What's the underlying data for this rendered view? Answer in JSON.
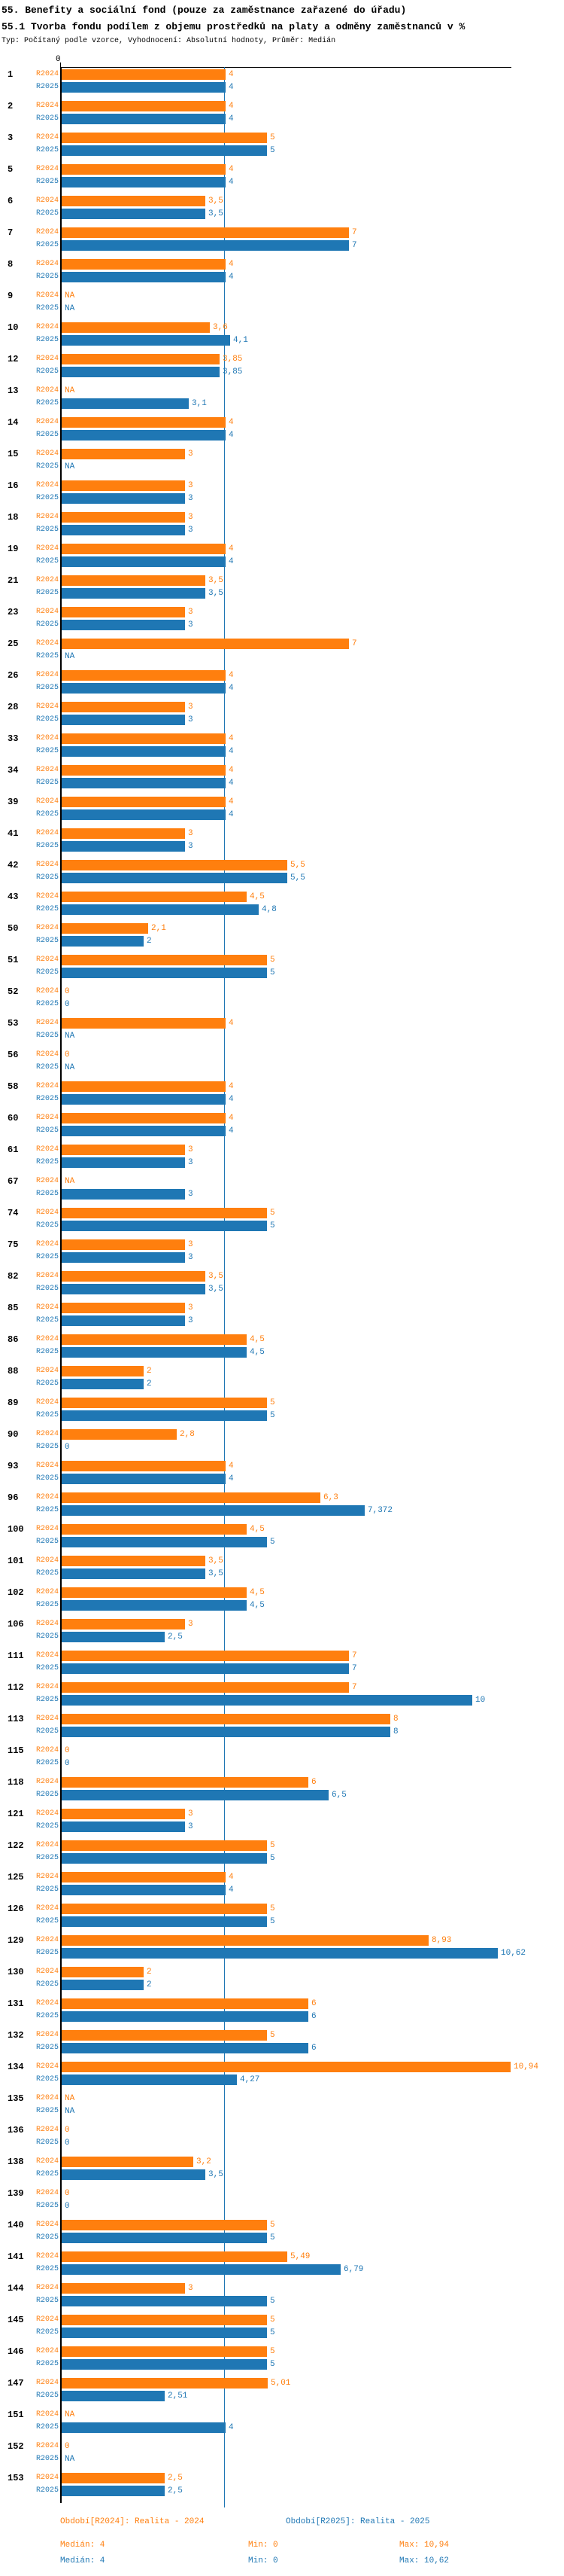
{
  "header": {
    "title_line1": "55. Benefity a sociální fond (pouze za zaměstnance zařazené do úřadu)",
    "title_line2": "55.1 Tvorba fondu podílem z objemu prostředků na platy a odměny zaměstnanců v %",
    "meta": "Typ: Počítaný podle vzorce, Vyhodnocení: Absolutní hodnoty, Průměr: Medián"
  },
  "axis": {
    "zero_label": "0"
  },
  "colors": {
    "r2024": "#ff7f0e",
    "r2025": "#1f77b4",
    "median_line": "#1f77b4",
    "axis": "#000000"
  },
  "series_labels": {
    "r2024": "R2024",
    "r2025": "R2025"
  },
  "na_label": "NA",
  "chart_data": {
    "type": "bar",
    "orientation": "horizontal",
    "series": [
      "R2024",
      "R2025"
    ],
    "decimal_separator": ",",
    "median_line_value": 4,
    "xlim": [
      0,
      11
    ],
    "grid": false,
    "legend_position": "bottom",
    "rows": [
      {
        "id": "1",
        "r2024": 4,
        "r2025": 4
      },
      {
        "id": "2",
        "r2024": 4,
        "r2025": 4
      },
      {
        "id": "3",
        "r2024": 5,
        "r2025": 5
      },
      {
        "id": "5",
        "r2024": 4,
        "r2025": 4
      },
      {
        "id": "6",
        "r2024": 3.5,
        "r2025": 3.5
      },
      {
        "id": "7",
        "r2024": 7,
        "r2025": 7
      },
      {
        "id": "8",
        "r2024": 4,
        "r2025": 4
      },
      {
        "id": "9",
        "r2024": null,
        "r2025": null
      },
      {
        "id": "10",
        "r2024": 3.6,
        "r2025": 4.1
      },
      {
        "id": "12",
        "r2024": 3.85,
        "r2025": 3.85
      },
      {
        "id": "13",
        "r2024": null,
        "r2025": 3.1
      },
      {
        "id": "14",
        "r2024": 4,
        "r2025": 4
      },
      {
        "id": "15",
        "r2024": 3,
        "r2025": null
      },
      {
        "id": "16",
        "r2024": 3,
        "r2025": 3
      },
      {
        "id": "18",
        "r2024": 3,
        "r2025": 3
      },
      {
        "id": "19",
        "r2024": 4,
        "r2025": 4
      },
      {
        "id": "21",
        "r2024": 3.5,
        "r2025": 3.5
      },
      {
        "id": "23",
        "r2024": 3,
        "r2025": 3
      },
      {
        "id": "25",
        "r2024": 7,
        "r2025": null
      },
      {
        "id": "26",
        "r2024": 4,
        "r2025": 4
      },
      {
        "id": "28",
        "r2024": 3,
        "r2025": 3
      },
      {
        "id": "33",
        "r2024": 4,
        "r2025": 4
      },
      {
        "id": "34",
        "r2024": 4,
        "r2025": 4
      },
      {
        "id": "39",
        "r2024": 4,
        "r2025": 4
      },
      {
        "id": "41",
        "r2024": 3,
        "r2025": 3
      },
      {
        "id": "42",
        "r2024": 5.5,
        "r2025": 5.5
      },
      {
        "id": "43",
        "r2024": 4.5,
        "r2025": 4.8
      },
      {
        "id": "50",
        "r2024": 2.1,
        "r2025": 2
      },
      {
        "id": "51",
        "r2024": 5,
        "r2025": 5
      },
      {
        "id": "52",
        "r2024": 0,
        "r2025": 0
      },
      {
        "id": "53",
        "r2024": 4,
        "r2025": null
      },
      {
        "id": "56",
        "r2024": 0,
        "r2025": null
      },
      {
        "id": "58",
        "r2024": 4,
        "r2025": 4
      },
      {
        "id": "60",
        "r2024": 4,
        "r2025": 4
      },
      {
        "id": "61",
        "r2024": 3,
        "r2025": 3
      },
      {
        "id": "67",
        "r2024": null,
        "r2025": 3
      },
      {
        "id": "74",
        "r2024": 5,
        "r2025": 5
      },
      {
        "id": "75",
        "r2024": 3,
        "r2025": 3
      },
      {
        "id": "82",
        "r2024": 3.5,
        "r2025": 3.5
      },
      {
        "id": "85",
        "r2024": 3,
        "r2025": 3
      },
      {
        "id": "86",
        "r2024": 4.5,
        "r2025": 4.5
      },
      {
        "id": "88",
        "r2024": 2,
        "r2025": 2
      },
      {
        "id": "89",
        "r2024": 5,
        "r2025": 5
      },
      {
        "id": "90",
        "r2024": 2.8,
        "r2025": 0
      },
      {
        "id": "93",
        "r2024": 4,
        "r2025": 4
      },
      {
        "id": "96",
        "r2024": 6.3,
        "r2025": 7.372
      },
      {
        "id": "100",
        "r2024": 4.5,
        "r2025": 5
      },
      {
        "id": "101",
        "r2024": 3.5,
        "r2025": 3.5
      },
      {
        "id": "102",
        "r2024": 4.5,
        "r2025": 4.5
      },
      {
        "id": "106",
        "r2024": 3,
        "r2025": 2.5
      },
      {
        "id": "111",
        "r2024": 7,
        "r2025": 7
      },
      {
        "id": "112",
        "r2024": 7,
        "r2025": 10
      },
      {
        "id": "113",
        "r2024": 8,
        "r2025": 8
      },
      {
        "id": "115",
        "r2024": 0,
        "r2025": 0
      },
      {
        "id": "118",
        "r2024": 6,
        "r2025": 6.5
      },
      {
        "id": "121",
        "r2024": 3,
        "r2025": 3
      },
      {
        "id": "122",
        "r2024": 5,
        "r2025": 5
      },
      {
        "id": "125",
        "r2024": 4,
        "r2025": 4
      },
      {
        "id": "126",
        "r2024": 5,
        "r2025": 5
      },
      {
        "id": "129",
        "r2024": 8.93,
        "r2025": 10.62
      },
      {
        "id": "130",
        "r2024": 2,
        "r2025": 2
      },
      {
        "id": "131",
        "r2024": 6,
        "r2025": 6
      },
      {
        "id": "132",
        "r2024": 5,
        "r2025": 6
      },
      {
        "id": "134",
        "r2024": 10.94,
        "r2025": 4.27
      },
      {
        "id": "135",
        "r2024": null,
        "r2025": null
      },
      {
        "id": "136",
        "r2024": 0,
        "r2025": 0
      },
      {
        "id": "138",
        "r2024": 3.2,
        "r2025": 3.5
      },
      {
        "id": "139",
        "r2024": 0,
        "r2025": 0
      },
      {
        "id": "140",
        "r2024": 5,
        "r2025": 5
      },
      {
        "id": "141",
        "r2024": 5.49,
        "r2025": 6.79
      },
      {
        "id": "144",
        "r2024": 3,
        "r2025": 5
      },
      {
        "id": "145",
        "r2024": 5,
        "r2025": 5
      },
      {
        "id": "146",
        "r2024": 5,
        "r2025": 5
      },
      {
        "id": "147",
        "r2024": 5.01,
        "r2025": 2.51
      },
      {
        "id": "151",
        "r2024": null,
        "r2025": 4
      },
      {
        "id": "152",
        "r2024": 0,
        "r2025": null
      },
      {
        "id": "153",
        "r2024": 2.5,
        "r2025": 2.5
      }
    ]
  },
  "footer": {
    "period_r2024": "Období[R2024]: Realita - 2024",
    "period_r2025": "Období[R2025]: Realita - 2025",
    "stats_r2024": {
      "median": "Medián: 4",
      "min": "Min: 0",
      "max": "Max: 10,94"
    },
    "stats_r2025": {
      "median": "Medián: 4",
      "min": "Min: 0",
      "max": "Max: 10,62"
    }
  }
}
